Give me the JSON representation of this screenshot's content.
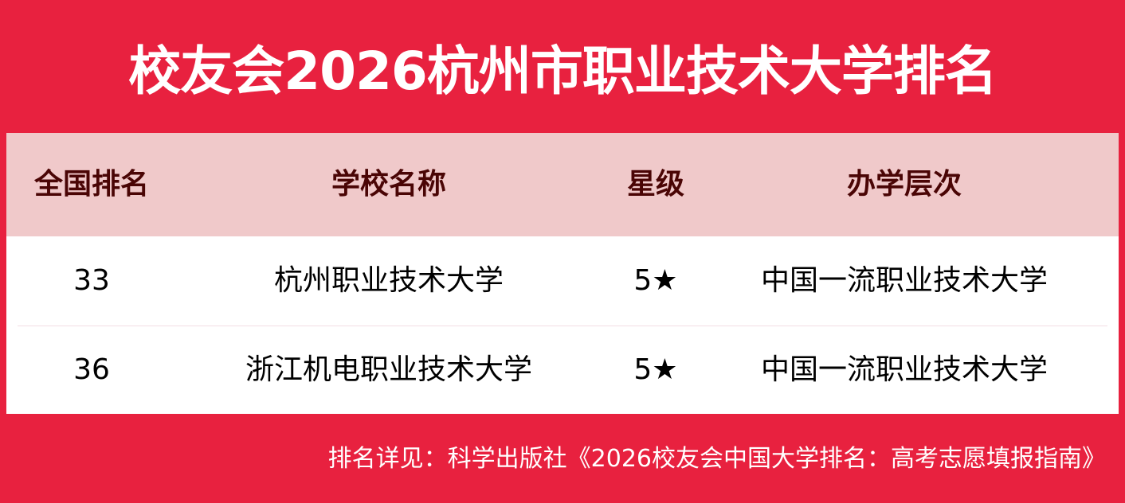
{
  "title": "校友会2026杭州市职业技术大学排名",
  "colors": {
    "background": "#E8213F",
    "header_bg": "#F0C9CA",
    "header_text": "#4A0505"
  },
  "table": {
    "headers": [
      "全国排名",
      "学校名称",
      "星级",
      "办学层次"
    ],
    "rows": [
      [
        "33",
        "杭州职业技术大学",
        "5★",
        "中国一流职业技术大学"
      ],
      [
        "36",
        "浙江机电职业技术大学",
        "5★",
        "中国一流职业技术大学"
      ]
    ]
  },
  "footer": "排名详见：科学出版社《2026校友会中国大学排名：高考志愿填报指南》"
}
